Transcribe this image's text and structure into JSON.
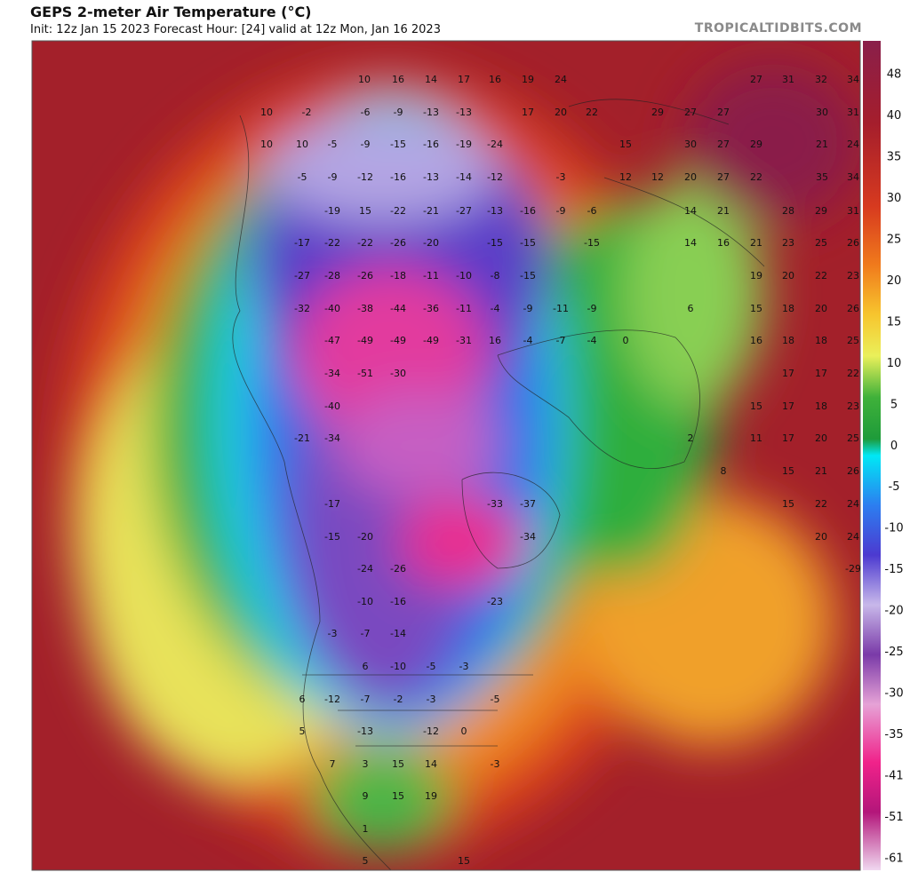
{
  "header": {
    "title": "GEPS 2-meter Air Temperature (°C)",
    "subtitle": "Init: 12z Jan 15 2023   Forecast Hour: [24]   valid at 12z Mon, Jan 16 2023",
    "brand": "TROPICALTIDBITS.COM"
  },
  "colorbar": {
    "ticks": [
      48,
      40,
      35,
      30,
      25,
      20,
      15,
      10,
      5,
      0,
      -5,
      -10,
      -15,
      -20,
      -25,
      -30,
      -35,
      -41,
      -51,
      -61
    ]
  },
  "map": {
    "labels": [
      10,
      16,
      14,
      17,
      16,
      19,
      24,
      27,
      31,
      32,
      34,
      10,
      -2,
      -6,
      -9,
      -13,
      -13,
      17,
      20,
      22,
      29,
      27,
      27,
      30,
      31,
      10,
      10,
      -5,
      -9,
      -15,
      -16,
      -19,
      -24,
      15,
      30,
      27,
      29,
      21,
      24,
      -5,
      -9,
      -12,
      -16,
      -13,
      -14,
      -12,
      -3,
      12,
      12,
      20,
      27,
      22,
      35,
      34,
      -19,
      15,
      -22,
      -21,
      -27,
      -13,
      -16,
      -9,
      -6,
      14,
      21,
      28,
      29,
      31,
      -17,
      -22,
      -22,
      -26,
      -20,
      -15,
      -15,
      -15,
      14,
      16,
      21,
      23,
      25,
      26,
      -27,
      -28,
      -26,
      -18,
      -11,
      -10,
      -8,
      -15,
      19,
      20,
      22,
      23,
      -32,
      -40,
      -38,
      -44,
      -36,
      -11,
      -4,
      -9,
      -11,
      -9,
      6,
      15,
      18,
      20,
      26,
      -47,
      -49,
      -49,
      -49,
      -31,
      16,
      -4,
      -7,
      -4,
      0,
      16,
      18,
      18,
      25,
      -34,
      -51,
      -30,
      17,
      17,
      22,
      -40,
      15,
      17,
      18,
      23,
      -21,
      -34,
      2,
      11,
      17,
      20,
      25,
      8,
      15,
      21,
      26,
      -17,
      -33,
      -37,
      15,
      22,
      24,
      -15,
      -20,
      -34,
      20,
      24,
      -24,
      -26,
      -29,
      -10,
      -16,
      -23,
      -3,
      -7,
      -14,
      6,
      -10,
      -5,
      -3,
      6,
      -12,
      -7,
      -2,
      -3,
      -5,
      5,
      -13,
      -12,
      0,
      7,
      3,
      15,
      14,
      -3,
      9,
      15,
      19,
      1,
      5,
      15
    ]
  }
}
